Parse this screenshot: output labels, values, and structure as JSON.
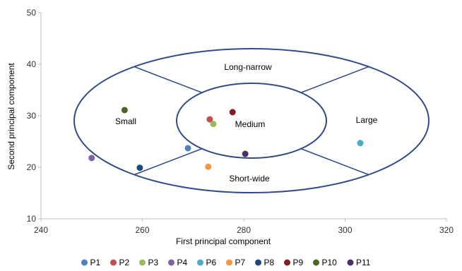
{
  "chart_data": {
    "type": "scatter",
    "xlabel": "First principal component",
    "ylabel": "Second principal component",
    "xlim": [
      240,
      320
    ],
    "ylim": [
      10,
      50
    ],
    "xticks": [
      240,
      260,
      280,
      300,
      320
    ],
    "yticks": [
      10,
      20,
      30,
      40,
      50
    ],
    "grid": false,
    "legend_position": "bottom",
    "series": [
      {
        "name": "P1",
        "color": "#4f81bd",
        "x": 269.0,
        "y": 23.7
      },
      {
        "name": "P2",
        "color": "#c0504d",
        "x": 273.3,
        "y": 29.3
      },
      {
        "name": "P3",
        "color": "#9bbb59",
        "x": 274.0,
        "y": 28.4
      },
      {
        "name": "P4",
        "color": "#8064a2",
        "x": 250.0,
        "y": 21.8
      },
      {
        "name": "P6",
        "color": "#4bacc6",
        "x": 303.0,
        "y": 24.7
      },
      {
        "name": "P7",
        "color": "#f79646",
        "x": 273.0,
        "y": 20.1
      },
      {
        "name": "P8",
        "color": "#1f497d",
        "x": 259.5,
        "y": 19.9
      },
      {
        "name": "P9",
        "color": "#7f1f1f",
        "x": 277.8,
        "y": 30.7
      },
      {
        "name": "P10",
        "color": "#4f6228",
        "x": 256.5,
        "y": 31.1
      },
      {
        "name": "P11",
        "color": "#4b3067",
        "x": 280.3,
        "y": 22.6
      }
    ],
    "region_labels": {
      "top": "Long-narrow",
      "left": "Small",
      "center": "Medium",
      "right": "Large",
      "bottom": "Short-wide"
    },
    "region_style": {
      "stroke": "#2f4b8a"
    }
  }
}
